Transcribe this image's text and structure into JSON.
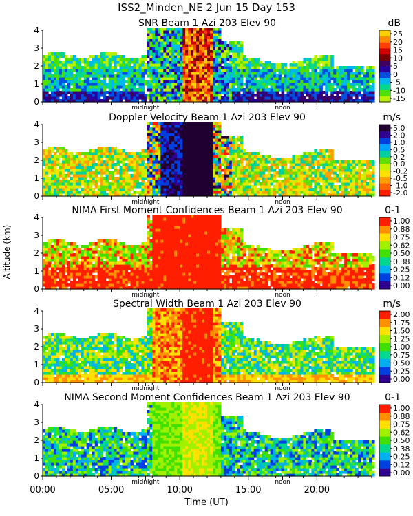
{
  "figure": {
    "title": "ISS2_Minden_NE    2 Jun 15 Day 153",
    "ylabel": "Altitude (km)",
    "xlabel": "Time (UT)",
    "x_ticks": [
      "00:00",
      "05:00",
      "10:00",
      "15:00",
      "20:00"
    ],
    "marker_labels": [
      "midnight",
      "noon"
    ]
  },
  "chart_data": [
    {
      "type": "heatmap",
      "title": "SNR Beam 1 Azi 203 Elev 90",
      "unit": "dB",
      "xlim": [
        0,
        24
      ],
      "ylim": [
        0,
        4
      ],
      "y_ticks": [
        "0",
        "1",
        "2",
        "3",
        "4"
      ],
      "colorbar_ticks": [
        "25",
        "20",
        "15",
        "10",
        "5",
        "0",
        "-5",
        "-10",
        "-15"
      ],
      "colors": [
        "#b8f000",
        "#50e000",
        "#00d890",
        "#00b8f0",
        "#0050e0",
        "#2800a0",
        "#400060",
        "#780000",
        "#d00000",
        "#ff4000",
        "#ff8c00",
        "#ffd000"
      ]
    },
    {
      "type": "heatmap",
      "title": "Doppler Velocity Beam 1 Azi 203 Elev 90",
      "unit": "m/s",
      "xlim": [
        0,
        24
      ],
      "ylim": [
        0,
        4
      ],
      "y_ticks": [
        "0",
        "1",
        "2",
        "3",
        "4"
      ],
      "colorbar_ticks": [
        "5.0",
        "2.0",
        "1.0",
        "0.5",
        "0.2",
        "0.0",
        "-0.2",
        "-0.5",
        "-1.0",
        "-2.0"
      ],
      "colors": [
        "#ff1e00",
        "#ff6400",
        "#ffa000",
        "#ffe000",
        "#c8f000",
        "#60e000",
        "#00d0a0",
        "#00a0ff",
        "#0040e0",
        "#300090",
        "#200030"
      ]
    },
    {
      "type": "heatmap",
      "title": "NIMA First Moment Confidences Beam 1 Azi 203 Elev 90",
      "unit": "0-1",
      "xlim": [
        0,
        24
      ],
      "ylim": [
        0,
        4
      ],
      "y_ticks": [
        "0",
        "1",
        "2",
        "3",
        "4"
      ],
      "colorbar_ticks": [
        "1.00",
        "0.88",
        "0.75",
        "0.62",
        "0.50",
        "0.38",
        "0.25",
        "0.12",
        "0.00"
      ],
      "colors": [
        "#300090",
        "#0040e0",
        "#00b0f0",
        "#00d890",
        "#40e000",
        "#a0f000",
        "#ffe000",
        "#ff9000",
        "#ff1e00"
      ]
    },
    {
      "type": "heatmap",
      "title": "Spectral Width Beam 1 Azi 203 Elev 90",
      "unit": "m/s",
      "xlim": [
        0,
        24
      ],
      "ylim": [
        0,
        4
      ],
      "y_ticks": [
        "0",
        "1",
        "2",
        "3",
        "4"
      ],
      "colorbar_ticks": [
        "2.00",
        "1.75",
        "1.50",
        "1.25",
        "1.00",
        "0.75",
        "0.50",
        "0.25",
        "0.00"
      ],
      "colors": [
        "#300090",
        "#0040e0",
        "#00b0f0",
        "#00d890",
        "#40e000",
        "#a0f000",
        "#ffe000",
        "#ff9000",
        "#ff1e00"
      ]
    },
    {
      "type": "heatmap",
      "title": "NIMA Second Moment Confidences Beam 1 Azi 203 Elev 90",
      "unit": "0-1",
      "xlim": [
        0,
        24
      ],
      "ylim": [
        0,
        4
      ],
      "y_ticks": [
        "0",
        "1",
        "2",
        "3",
        "4"
      ],
      "colorbar_ticks": [
        "1.00",
        "0.88",
        "0.75",
        "0.62",
        "0.50",
        "0.38",
        "0.25",
        "0.12",
        "0.00"
      ],
      "colors": [
        "#300090",
        "#0040e0",
        "#00b0f0",
        "#00d890",
        "#40e000",
        "#a0f000",
        "#ffe000",
        "#ff9000",
        "#ff1e00"
      ]
    }
  ]
}
